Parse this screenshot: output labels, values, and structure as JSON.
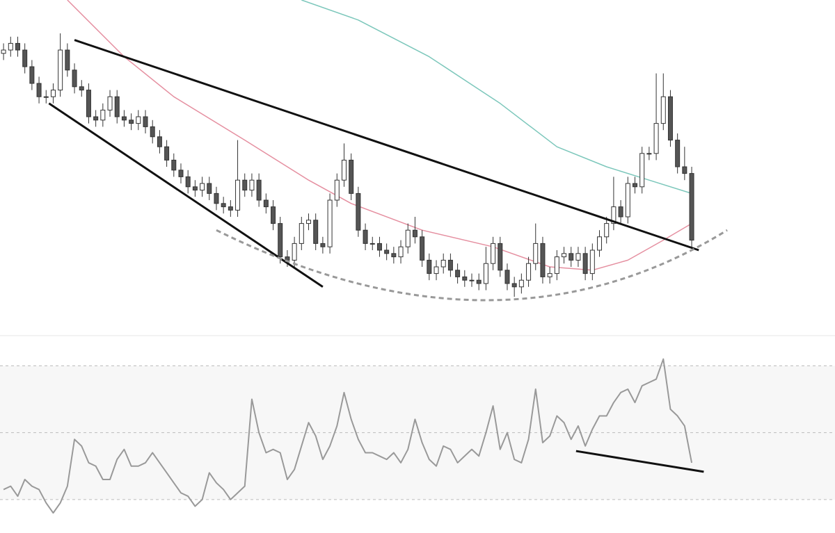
{
  "chart_data": [
    {
      "type": "candlestick",
      "xlim": [
        -0.5,
        117.2
      ],
      "ylim": [
        0,
        100
      ],
      "x": [
        0,
        1,
        2,
        3,
        4,
        5,
        6,
        7,
        8,
        9,
        10,
        11,
        12,
        13,
        14,
        15,
        16,
        17,
        18,
        19,
        20,
        21,
        22,
        23,
        24,
        25,
        26,
        27,
        28,
        29,
        30,
        31,
        32,
        33,
        34,
        35,
        36,
        37,
        38,
        39,
        40,
        41,
        42,
        43,
        44,
        45,
        46,
        47,
        48,
        49,
        50,
        51,
        52,
        53,
        54,
        55,
        56,
        57,
        58,
        59,
        60,
        61,
        62,
        63,
        64,
        65,
        66,
        67,
        68,
        69,
        70,
        71,
        72,
        73,
        74,
        75,
        76,
        77,
        78,
        79,
        80,
        81,
        82,
        83,
        84,
        85,
        86,
        87,
        88,
        89,
        90,
        91,
        92,
        93,
        94,
        95,
        96,
        97
      ],
      "open": [
        84,
        85,
        87,
        85,
        80,
        75,
        71,
        71,
        73,
        85,
        79,
        74,
        73,
        65,
        64,
        67,
        71,
        65,
        64,
        63,
        65,
        62,
        59,
        56,
        52,
        49,
        47,
        44,
        43,
        45,
        42,
        39,
        38,
        37,
        46,
        43,
        46,
        40,
        38,
        33,
        23,
        22,
        27,
        33,
        34,
        27,
        26,
        40,
        46,
        52,
        42,
        31,
        27,
        27,
        25,
        24,
        23,
        26,
        31,
        29,
        22,
        18,
        20,
        22,
        19,
        17,
        16,
        16,
        15,
        21,
        27,
        19,
        15,
        14,
        16,
        21,
        27,
        17,
        18,
        23,
        24,
        22,
        24,
        18,
        25,
        29,
        33,
        38,
        35,
        45,
        44,
        54,
        54,
        63,
        71,
        58,
        50,
        48
      ],
      "high": [
        87,
        89,
        89,
        87,
        82,
        77,
        73,
        75,
        90,
        87,
        81,
        76,
        75,
        67,
        69,
        73,
        73,
        67,
        66,
        67,
        67,
        64,
        61,
        58,
        54,
        51,
        49,
        46,
        47,
        47,
        44,
        41,
        40,
        58,
        48,
        48,
        48,
        42,
        40,
        35,
        25,
        29,
        35,
        36,
        36,
        29,
        42,
        48,
        57,
        54,
        44,
        33,
        29,
        29,
        27,
        26,
        28,
        33,
        35,
        31,
        24,
        22,
        24,
        24,
        21,
        19,
        18,
        18,
        26,
        29,
        29,
        21,
        17,
        18,
        23,
        33,
        29,
        20,
        25,
        26,
        26,
        26,
        26,
        27,
        31,
        35,
        47,
        40,
        47,
        47,
        56,
        56,
        78,
        78,
        73,
        60,
        56,
        50
      ],
      "low": [
        82,
        83,
        83,
        78,
        73,
        69,
        69,
        69,
        71,
        77,
        72,
        71,
        63,
        62,
        62,
        65,
        63,
        62,
        61,
        61,
        60,
        57,
        54,
        50,
        47,
        45,
        42,
        41,
        41,
        40,
        37,
        36,
        35,
        35,
        41,
        41,
        38,
        36,
        31,
        21,
        20,
        20,
        25,
        31,
        25,
        24,
        24,
        38,
        44,
        40,
        29,
        25,
        25,
        23,
        22,
        21,
        21,
        24,
        27,
        20,
        16,
        16,
        18,
        17,
        15,
        14,
        14,
        13,
        13,
        19,
        17,
        13,
        11,
        12,
        14,
        19,
        15,
        15,
        16,
        21,
        20,
        20,
        16,
        16,
        23,
        27,
        31,
        33,
        33,
        42,
        42,
        52,
        52,
        61,
        56,
        48,
        46,
        26
      ],
      "close": [
        85,
        87,
        85,
        80,
        75,
        71,
        71,
        73,
        85,
        79,
        74,
        73,
        65,
        64,
        67,
        71,
        65,
        64,
        63,
        65,
        62,
        59,
        56,
        52,
        49,
        47,
        44,
        43,
        45,
        42,
        39,
        38,
        37,
        46,
        43,
        46,
        40,
        38,
        33,
        23,
        22,
        27,
        33,
        34,
        27,
        26,
        40,
        46,
        52,
        42,
        31,
        27,
        27,
        25,
        24,
        23,
        26,
        31,
        29,
        22,
        18,
        20,
        22,
        19,
        17,
        16,
        16,
        15,
        21,
        27,
        19,
        15,
        14,
        16,
        21,
        27,
        17,
        18,
        23,
        24,
        22,
        24,
        18,
        25,
        29,
        33,
        38,
        35,
        45,
        44,
        54,
        54,
        63,
        71,
        58,
        50,
        48,
        28
      ],
      "series": [
        {
          "color": "#e58fa0",
          "x": [
            9,
            17,
            24,
            34,
            43,
            49,
            59,
            69,
            77,
            83,
            88,
            93,
            97
          ],
          "values": [
            100,
            83,
            71,
            58,
            46,
            39,
            31,
            26,
            20,
            19,
            22,
            28,
            33
          ]
        },
        {
          "color": "#7cc7bb",
          "x": [
            42,
            50,
            60,
            70,
            78,
            85,
            91,
            97
          ],
          "values": [
            100,
            94,
            83,
            69,
            56,
            50,
            46,
            42
          ]
        }
      ],
      "trendlines": [
        {
          "color": "#111111",
          "dashed": false,
          "x": [
            10,
            98
          ],
          "values": [
            88,
            25
          ]
        },
        {
          "color": "#111111",
          "dashed": false,
          "x": [
            6.4,
            45
          ],
          "values": [
            69,
            14
          ]
        },
        {
          "color": "#999999",
          "dashed": true,
          "x": [
            30,
            68,
            102
          ],
          "values": [
            31,
            10,
            31
          ]
        }
      ]
    },
    {
      "type": "line",
      "xlim": [
        -0.5,
        117.2
      ],
      "ylim": [
        20,
        79
      ],
      "levels": [
        30,
        50,
        70
      ],
      "band": [
        30,
        70
      ],
      "band_color": "#f7f7f7",
      "color": "#999999",
      "x": [
        0,
        1,
        2,
        3,
        4,
        5,
        6,
        7,
        8,
        9,
        10,
        11,
        12,
        13,
        14,
        15,
        16,
        17,
        18,
        19,
        20,
        21,
        22,
        23,
        24,
        25,
        26,
        27,
        28,
        29,
        30,
        31,
        32,
        33,
        34,
        35,
        36,
        37,
        38,
        39,
        40,
        41,
        42,
        43,
        44,
        45,
        46,
        47,
        48,
        49,
        50,
        51,
        52,
        53,
        54,
        55,
        56,
        57,
        58,
        59,
        60,
        61,
        62,
        63,
        64,
        65,
        66,
        67,
        68,
        69,
        70,
        71,
        72,
        73,
        74,
        75,
        76,
        77,
        78,
        79,
        80,
        81,
        82,
        83,
        84,
        85,
        86,
        87,
        88,
        89,
        90,
        91,
        92,
        93,
        94,
        95,
        96,
        97
      ],
      "values": [
        33,
        34,
        31,
        36,
        34,
        33,
        29,
        26,
        29,
        34,
        48,
        46,
        41,
        40,
        36,
        36,
        42,
        45,
        40,
        40,
        41,
        44,
        41,
        38,
        35,
        32,
        31,
        28,
        30,
        38,
        35,
        33,
        30,
        32,
        34,
        60,
        50,
        44,
        45,
        44,
        36,
        39,
        46,
        53,
        49,
        42,
        46,
        52,
        62,
        54,
        48,
        44,
        44,
        43,
        42,
        44,
        41,
        45,
        54,
        47,
        42,
        40,
        46,
        45,
        41,
        43,
        45,
        43,
        50,
        58,
        45,
        50,
        42,
        41,
        48,
        63,
        47,
        49,
        55,
        53,
        48,
        52,
        46,
        51,
        55,
        55,
        59,
        62,
        63,
        59,
        64,
        65,
        66,
        72,
        57,
        55,
        52,
        41
      ],
      "trendlines": [
        {
          "color": "#111111",
          "dashed": false,
          "x": [
            80.7,
            98.7
          ],
          "values": [
            44.5,
            38.3
          ]
        }
      ]
    }
  ]
}
